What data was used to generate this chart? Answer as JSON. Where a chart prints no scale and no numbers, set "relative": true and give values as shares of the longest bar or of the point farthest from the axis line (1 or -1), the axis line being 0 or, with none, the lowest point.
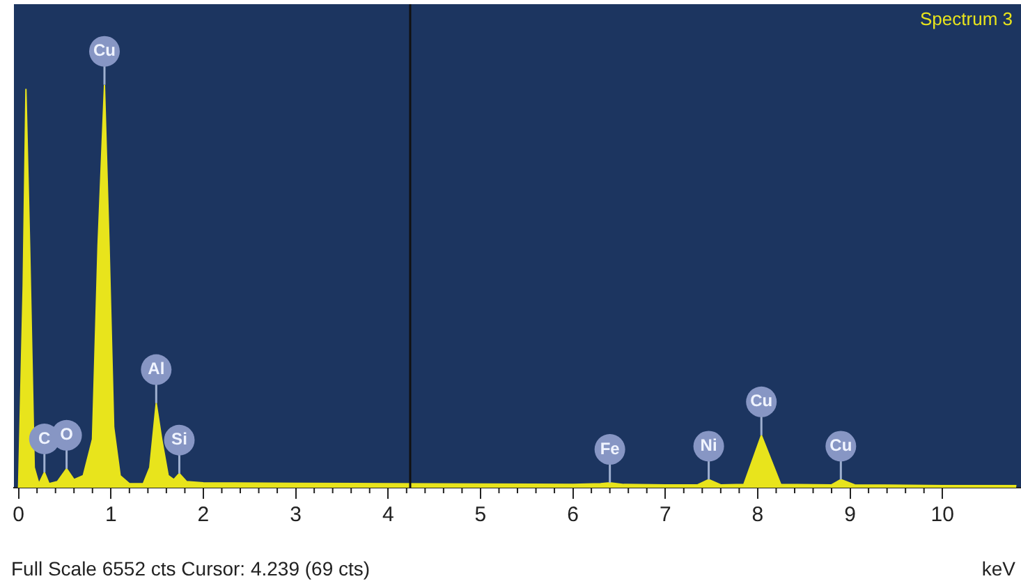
{
  "chart_data": {
    "type": "area",
    "relative": true,
    "xlabel": "keV",
    "xlim": [
      -0.05,
      10.85
    ],
    "xticks": [
      0,
      1,
      2,
      3,
      4,
      5,
      6,
      7,
      8,
      9,
      10
    ],
    "grid": false,
    "legend": false,
    "marker": "none",
    "x": [
      0,
      0.05,
      0.08,
      0.12,
      0.17,
      0.22,
      0.28,
      0.33,
      0.42,
      0.52,
      0.6,
      0.7,
      0.8,
      0.86,
      0.93,
      0.98,
      1.03,
      1.1,
      1.2,
      1.35,
      1.42,
      1.49,
      1.55,
      1.62,
      1.68,
      1.74,
      1.82,
      2,
      3,
      4,
      5,
      6,
      6.3,
      6.4,
      6.55,
      7,
      7.35,
      7.47,
      7.6,
      7.85,
      8.04,
      8.25,
      8.8,
      8.9,
      9.05,
      10,
      10.8
    ],
    "series": [
      {
        "color": "#e8e41c",
        "values": [
          0,
          0.5,
          0.99,
          0.6,
          0.05,
          0.01,
          0.038,
          0.01,
          0.015,
          0.047,
          0.02,
          0.03,
          0.12,
          0.6,
          1,
          0.6,
          0.15,
          0.03,
          0.01,
          0.01,
          0.05,
          0.21,
          0.12,
          0.03,
          0.02,
          0.035,
          0.015,
          0.012,
          0.011,
          0.01,
          0.009,
          0.008,
          0.01,
          0.012,
          0.008,
          0.007,
          0.007,
          0.02,
          0.007,
          0.008,
          0.13,
          0.008,
          0.007,
          0.02,
          0.007,
          0.005,
          0.005
        ]
      }
    ],
    "ref_lines": [
      {
        "axis": "x",
        "value": 4.239,
        "color": "#111111"
      }
    ],
    "annotations": [
      "Spectrum 3",
      "Full Scale 6552 cts Cursor: 4.239 (69 cts)",
      {
        "text": "Cu",
        "x": 0.93,
        "y": 1
      },
      {
        "text": "C",
        "x": 0.28,
        "y": 0.038
      },
      {
        "text": "O",
        "x": 0.52,
        "y": 0.047
      },
      {
        "text": "Al",
        "x": 1.49,
        "y": 0.21
      },
      {
        "text": "Si",
        "x": 1.74,
        "y": 0.035
      },
      {
        "text": "Fe",
        "x": 6.4,
        "y": 0.012
      },
      {
        "text": "Ni",
        "x": 7.47,
        "y": 0.02
      },
      {
        "text": "Cu",
        "x": 8.04,
        "y": 0.13
      },
      {
        "text": "Cu",
        "x": 8.9,
        "y": 0.02
      }
    ]
  }
}
